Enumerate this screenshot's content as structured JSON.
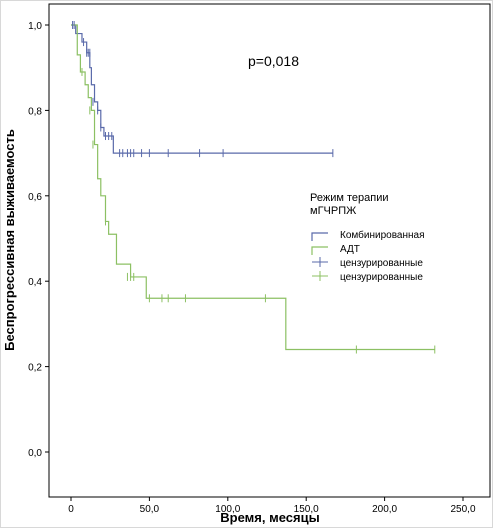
{
  "chart_data": {
    "type": "line",
    "subtype": "kaplan-meier",
    "xlabel": "Время, месяцы",
    "ylabel": "Беспрогрессивная выживаемость",
    "xlim": [
      0,
      250
    ],
    "ylim": [
      0,
      1.0
    ],
    "x_ticks": [
      "0",
      "50,0",
      "100,0",
      "150,0",
      "200,0",
      "250,0"
    ],
    "x_tick_values": [
      0,
      50,
      100,
      150,
      200,
      250
    ],
    "y_ticks": [
      "0,0",
      "0,2",
      "0,4",
      "0,6",
      "0,8",
      "1,0"
    ],
    "y_tick_values": [
      0,
      0.2,
      0.4,
      0.6,
      0.8,
      1.0
    ],
    "grid": false,
    "annotation": "p=0,018",
    "legend": {
      "title_lines": [
        "Режим терапии",
        "мГЧРПЖ"
      ],
      "placement": "right",
      "entries": [
        "Комбинированная",
        "АДТ",
        "цензурированные",
        "цензурированные"
      ]
    },
    "series": [
      {
        "name": "Комбинированная",
        "color": "#5a6aaa",
        "x": [
          0,
          3,
          7,
          10,
          12,
          13,
          15,
          17,
          19,
          21,
          25,
          27,
          167
        ],
        "y": [
          1.0,
          0.98,
          0.96,
          0.935,
          0.9,
          0.86,
          0.82,
          0.8,
          0.76,
          0.74,
          0.74,
          0.7,
          0.7
        ],
        "censored_x": [
          1,
          2,
          8,
          10,
          11,
          12,
          14,
          17,
          19,
          22,
          24,
          26,
          31,
          33,
          36,
          38,
          40,
          45,
          50,
          62,
          82,
          97,
          167
        ],
        "censored_y": [
          1.0,
          1.0,
          0.96,
          0.935,
          0.935,
          0.935,
          0.82,
          0.8,
          0.76,
          0.74,
          0.74,
          0.74,
          0.7,
          0.7,
          0.7,
          0.7,
          0.7,
          0.7,
          0.7,
          0.7,
          0.7,
          0.7,
          0.7
        ]
      },
      {
        "name": "АДТ",
        "color": "#8cc063",
        "x": [
          0,
          4,
          6,
          9,
          11,
          13,
          15,
          17,
          19,
          22,
          24,
          29,
          38,
          48,
          137,
          232
        ],
        "y": [
          1.0,
          0.93,
          0.89,
          0.86,
          0.83,
          0.8,
          0.72,
          0.64,
          0.6,
          0.54,
          0.51,
          0.44,
          0.41,
          0.36,
          0.24,
          0.24
        ],
        "censored_x": [
          7,
          12,
          14,
          22,
          36,
          38,
          40,
          50,
          58,
          62,
          73,
          124,
          182,
          232
        ],
        "censored_y": [
          0.89,
          0.8,
          0.72,
          0.54,
          0.41,
          0.41,
          0.41,
          0.36,
          0.36,
          0.36,
          0.36,
          0.36,
          0.24,
          0.24
        ]
      }
    ]
  }
}
